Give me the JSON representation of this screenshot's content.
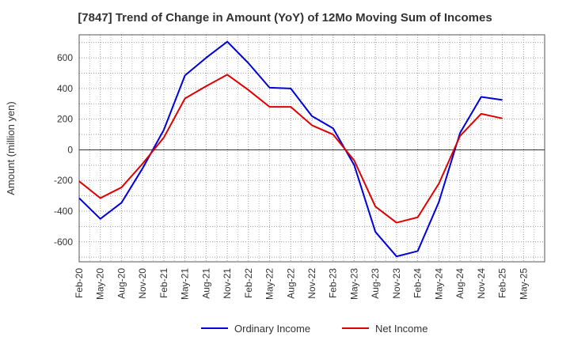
{
  "chart_data": {
    "type": "line",
    "title": "[7847]  Trend of Change in Amount (YoY) of 12Mo Moving Sum of Incomes",
    "xlabel": "",
    "ylabel": "Amount (million yen)",
    "ylim": [
      -730,
      750
    ],
    "yticks": [
      -600,
      -400,
      -200,
      0,
      200,
      400,
      600
    ],
    "grid": true,
    "legend_position": "bottom",
    "categories": [
      "Feb-20",
      "May-20",
      "Aug-20",
      "Nov-20",
      "Feb-21",
      "May-21",
      "Aug-21",
      "Nov-21",
      "Feb-22",
      "May-22",
      "Aug-22",
      "Nov-22",
      "Feb-23",
      "May-23",
      "Aug-23",
      "Nov-23",
      "Feb-24",
      "May-24",
      "Aug-24",
      "Nov-24",
      "Feb-25",
      "May-25"
    ],
    "series": [
      {
        "name": "Ordinary Income",
        "color": "#0000dd",
        "values": [
          -315,
          -450,
          -345,
          -120,
          130,
          485,
          600,
          705,
          565,
          405,
          400,
          220,
          140,
          -100,
          -535,
          -695,
          -660,
          -340,
          110,
          345,
          325,
          null
        ]
      },
      {
        "name": "Net Income",
        "color": "#dd0000",
        "values": [
          -205,
          -315,
          -245,
          -90,
          80,
          335,
          415,
          490,
          390,
          280,
          280,
          160,
          100,
          -70,
          -370,
          -475,
          -440,
          -220,
          90,
          235,
          205,
          null
        ]
      }
    ]
  }
}
